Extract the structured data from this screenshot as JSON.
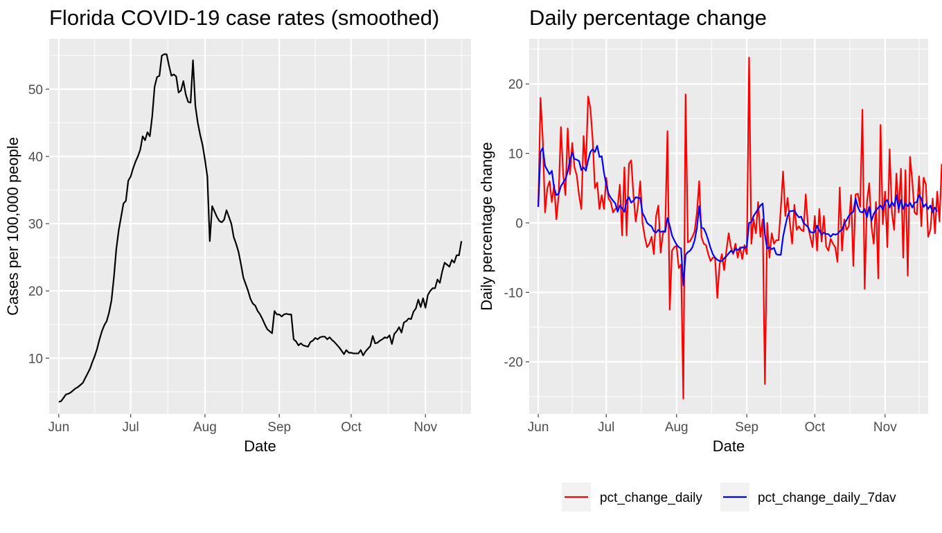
{
  "colors": {
    "panel_bg": "#EBEBEB",
    "grid": "#FFFFFF",
    "line_left": "#000000",
    "pct_change_daily": "#FF0000",
    "pct_change_daily_7dav": "#0000FF",
    "legend_key_bg": "#F2F2F2"
  },
  "chart_data": [
    {
      "type": "line",
      "title": "Florida COVID-19 case rates (smoothed)",
      "xlabel": "Date",
      "ylabel": "Cases per 100,000 people",
      "x_axis": "date",
      "xlim": [
        "2020-05-28",
        "2020-11-20"
      ],
      "ylim": [
        1.7,
        57.5
      ],
      "x_ticks": [
        {
          "date": "2020-06-01",
          "label": "Jun"
        },
        {
          "date": "2020-07-01",
          "label": "Jul"
        },
        {
          "date": "2020-08-01",
          "label": "Aug"
        },
        {
          "date": "2020-09-01",
          "label": "Sep"
        },
        {
          "date": "2020-10-01",
          "label": "Oct"
        },
        {
          "date": "2020-11-01",
          "label": "Nov"
        }
      ],
      "y_ticks": [
        10,
        20,
        30,
        40,
        50
      ],
      "grid": true,
      "legend": "none",
      "start_date": "2020-06-01",
      "series": [
        {
          "values": [
            3.5,
            3.6,
            4.1,
            4.6,
            4.7,
            4.9,
            5.2,
            5.5,
            5.7,
            6.0,
            6.3,
            7.0,
            7.7,
            8.4,
            9.4,
            10.3,
            11.4,
            12.8,
            14.0,
            14.9,
            15.5,
            16.8,
            18.6,
            22.0,
            26.2,
            29.0,
            31.0,
            33.0,
            33.4,
            36.4,
            37.0,
            38.2,
            39.2,
            40.0,
            41.0,
            43.0,
            42.4,
            43.6,
            43.0,
            46.0,
            50.4,
            51.8,
            52.0,
            55.0,
            55.2,
            55.2,
            53.5,
            52.0,
            52.2,
            51.9,
            49.5,
            49.8,
            51.2,
            49.2,
            48.1,
            48.0,
            54.3,
            47.5,
            45.0,
            43.2,
            41.7,
            39.5,
            37.0,
            27.4,
            32.6,
            31.8,
            31.0,
            30.4,
            30.2,
            30.6,
            32.0,
            31.0,
            30.0,
            28.0,
            27.0,
            25.8,
            24.0,
            22.0,
            21.0,
            20.0,
            18.8,
            18.1,
            17.8,
            17.0,
            16.5,
            15.8,
            15.0,
            14.3,
            14.0,
            13.7,
            17.0,
            16.5,
            16.5,
            16.2,
            16.5,
            16.6,
            16.5,
            16.5,
            12.8,
            12.5,
            11.9,
            12.2,
            11.9,
            11.8,
            11.7,
            12.4,
            12.6,
            13.0,
            12.8,
            13.1,
            13.2,
            13.2,
            12.8,
            13.1,
            12.7,
            12.4,
            12.0,
            11.6,
            11.1,
            10.6,
            11.2,
            10.8,
            10.8,
            10.7,
            10.7,
            10.7,
            11.2,
            10.4,
            11.0,
            11.4,
            11.8,
            13.3,
            12.2,
            12.3,
            12.6,
            12.8,
            13.1,
            13.0,
            13.4,
            12.1,
            13.6,
            14.0,
            14.6,
            13.8,
            15.3,
            15.5,
            15.9,
            15.8,
            16.9,
            17.4,
            18.7,
            17.6,
            18.9,
            17.5,
            19.4,
            20.0,
            20.4,
            20.4,
            21.7,
            21.2,
            22.9,
            24.2,
            23.9,
            23.6,
            24.6,
            24.2,
            25.3,
            25.3,
            27.4
          ]
        }
      ]
    },
    {
      "type": "line",
      "title": "Daily percentage change",
      "xlabel": "Date",
      "ylabel": "Daily percentage change",
      "x_axis": "date",
      "xlim": [
        "2020-05-28",
        "2020-11-20"
      ],
      "ylim": [
        -27.5,
        26.5
      ],
      "x_ticks": [
        {
          "date": "2020-06-01",
          "label": "Jun"
        },
        {
          "date": "2020-07-01",
          "label": "Jul"
        },
        {
          "date": "2020-08-01",
          "label": "Aug"
        },
        {
          "date": "2020-09-01",
          "label": "Sep"
        },
        {
          "date": "2020-10-01",
          "label": "Oct"
        },
        {
          "date": "2020-11-01",
          "label": "Nov"
        }
      ],
      "y_ticks": [
        -20,
        -10,
        0,
        10,
        20
      ],
      "grid": true,
      "legend": "bottom",
      "start_date": "2020-06-01",
      "series": [
        {
          "name": "pct_change_daily",
          "color": "#FF0000",
          "values": [
            2.3,
            18.0,
            12.0,
            1.5,
            5.0,
            6.0,
            3.0,
            5.5,
            0.5,
            4.0,
            13.8,
            7.0,
            4.0,
            13.6,
            7.0,
            11.5,
            8.0,
            6.8,
            4.0,
            2.0,
            12.5,
            8.0,
            18.2,
            16.5,
            12.0,
            5.0,
            5.8,
            2.0,
            4.0,
            2.0,
            6.5,
            3.5,
            3.0,
            1.5,
            2.0,
            2.2,
            5.5,
            -1.8,
            8.0,
            -1.8,
            8.5,
            9.0,
            4.0,
            0.2,
            2.5,
            6.0,
            0.0,
            -2.0,
            -3.5,
            -3.0,
            -2.0,
            -4.5,
            1.0,
            2.5,
            -4.3,
            -1.5,
            -1.0,
            13.2,
            -12.5,
            -4.0,
            -3.5,
            -3.3,
            -6.5,
            -6.0,
            -25.3,
            18.5,
            -2.8,
            -2.6,
            -2.0,
            -1.2,
            1.5,
            6.0,
            -2.0,
            -3.0,
            -3.2,
            -4.5,
            -5.5,
            -5.0,
            -5.0,
            -10.8,
            -6.0,
            -4.5,
            -6.8,
            -4.0,
            -1.5,
            -3.5,
            -4.5,
            -3.0,
            -5.0,
            -3.5,
            -5.2,
            -3.2,
            -4.5,
            23.8,
            -3.0,
            0.5,
            -1.5,
            3.0,
            -2.0,
            0.5,
            -23.2,
            0.0,
            -5.0,
            -1.5,
            -3.0,
            -2.5,
            -2.5,
            2.0,
            7.4,
            1.0,
            3.6,
            0.0,
            -3.0,
            2.6,
            -1.0,
            -0.5,
            -1.0,
            -1.2,
            4.1,
            -0.5,
            -2.0,
            -3.5,
            1.0,
            -4.0,
            2.0,
            -2.7,
            1.0,
            -3.4,
            -4.0,
            -2.3,
            -3.0,
            -3.5,
            -5.6,
            5.1,
            -4.0,
            0.5,
            -1.0,
            -0.5,
            4.0,
            -6.2,
            4.1,
            4.2,
            2.3,
            16.3,
            -9.5,
            3.0,
            5.7,
            -0.5,
            -3.0,
            3.0,
            -8.0,
            14.1,
            -0.2,
            4.5,
            -3.5,
            10.6,
            1.5,
            -1.0,
            7.1,
            1.5,
            7.8,
            -5.0,
            7.6,
            -7.6,
            9.5,
            6.0,
            1.5,
            1.2,
            6.7,
            -0.5,
            6.5,
            5.5,
            -2.0,
            -1.0,
            3.5,
            -1.5,
            4.5,
            0.2,
            8.5
          ]
        },
        {
          "name": "pct_change_daily_7dav",
          "color": "#0000FF",
          "values": [
            2.3,
            10.2,
            10.8,
            8.2,
            7.6,
            7.0,
            7.5,
            5.0,
            4.0,
            4.2,
            5.3,
            5.8,
            6.3,
            7.4,
            9.0,
            10.1,
            9.2,
            9.1,
            8.9,
            7.6,
            8.0,
            7.5,
            9.0,
            10.2,
            10.6,
            10.2,
            11.1,
            9.5,
            9.6,
            7.2,
            5.5,
            4.2,
            3.6,
            3.2,
            2.8,
            1.6,
            2.5,
            2.1,
            1.6,
            3.2,
            3.7,
            2.9,
            3.2,
            3.7,
            3.6,
            3.6,
            1.4,
            0.8,
            0.0,
            -0.3,
            -0.5,
            -1.2,
            -1.4,
            -1.0,
            -1.3,
            -1.2,
            -1.3,
            0.7,
            -0.4,
            -1.8,
            -2.5,
            -3.1,
            -3.5,
            -3.7,
            -9.0,
            -4.6,
            -4.2,
            -4.0,
            -3.5,
            -2.5,
            -0.7,
            2.4,
            -0.7,
            -0.8,
            -1.5,
            -2.5,
            -3.6,
            -4.5,
            -5.0,
            -5.3,
            -5.5,
            -5.5,
            -5.1,
            -4.8,
            -4.4,
            -4.0,
            -4.3,
            -3.7,
            -3.9,
            -3.7,
            -3.5,
            -3.6,
            -3.4,
            0.0,
            0.1,
            1.0,
            1.5,
            2.0,
            2.5,
            2.8,
            -1.7,
            -3.7,
            -3.5,
            -3.8,
            -3.6,
            -4.5,
            -4.6,
            -4.6,
            -2.0,
            -0.4,
            1.0,
            1.7,
            1.7,
            1.8,
            1.2,
            0.8,
            0.9,
            0.0,
            -0.3,
            -0.6,
            -1.3,
            -1.4,
            -1.3,
            -0.4,
            -1.1,
            -1.7,
            -1.4,
            -1.6,
            -1.6,
            -2.0,
            -1.6,
            -1.7,
            -1.6,
            -1.2,
            -1.0,
            -0.1,
            0.4,
            1.0,
            1.4,
            1.6,
            3.5,
            2.3,
            1.6,
            1.5,
            2.0,
            0.8,
            2.3,
            0.3,
            1.3,
            1.8,
            2.2,
            2.5,
            1.9,
            3.0,
            3.3,
            2.2,
            3.0,
            2.4,
            4.0,
            2.0,
            3.3,
            2.0,
            2.8,
            2.4,
            2.9,
            2.2,
            2.9,
            3.0,
            4.0,
            3.5,
            2.3,
            2.7,
            2.0,
            2.5,
            1.5,
            2.2,
            1.6
          ]
        }
      ]
    }
  ]
}
